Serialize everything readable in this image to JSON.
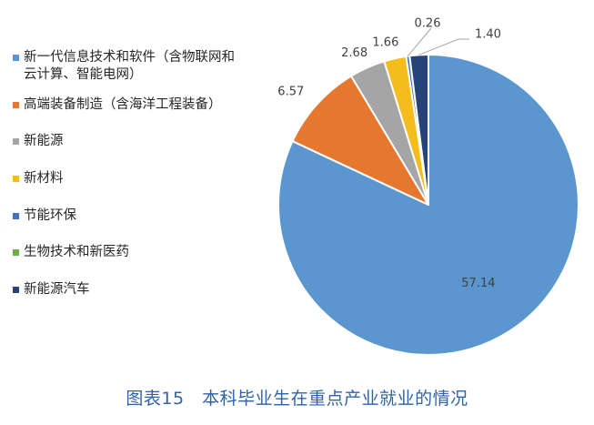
{
  "chart_data": {
    "type": "pie",
    "categories": [
      "新一代信息技术和软件（含物联网和云计算、智能电网）",
      "高端装备制造（含海洋工程装备）",
      "新能源",
      "新材料",
      "节能环保",
      "生物技术和新医药",
      "新能源汽车"
    ],
    "values": [
      57.14,
      6.57,
      2.68,
      1.66,
      0.26,
      0.0,
      1.4
    ],
    "value_labels": [
      "57.14",
      "6.57",
      "2.68",
      "1.66",
      "0.26",
      "",
      "1.40"
    ],
    "colors": [
      "#5b97ce",
      "#e5772f",
      "#a5a5a5",
      "#f4bc1c",
      "#4472c4",
      "#70ad47",
      "#264478"
    ],
    "legend_position": "left",
    "start_angle_deg": 0,
    "direction": "clockwise"
  },
  "caption": "图表15　本科毕业生在重点产业就业的情况"
}
